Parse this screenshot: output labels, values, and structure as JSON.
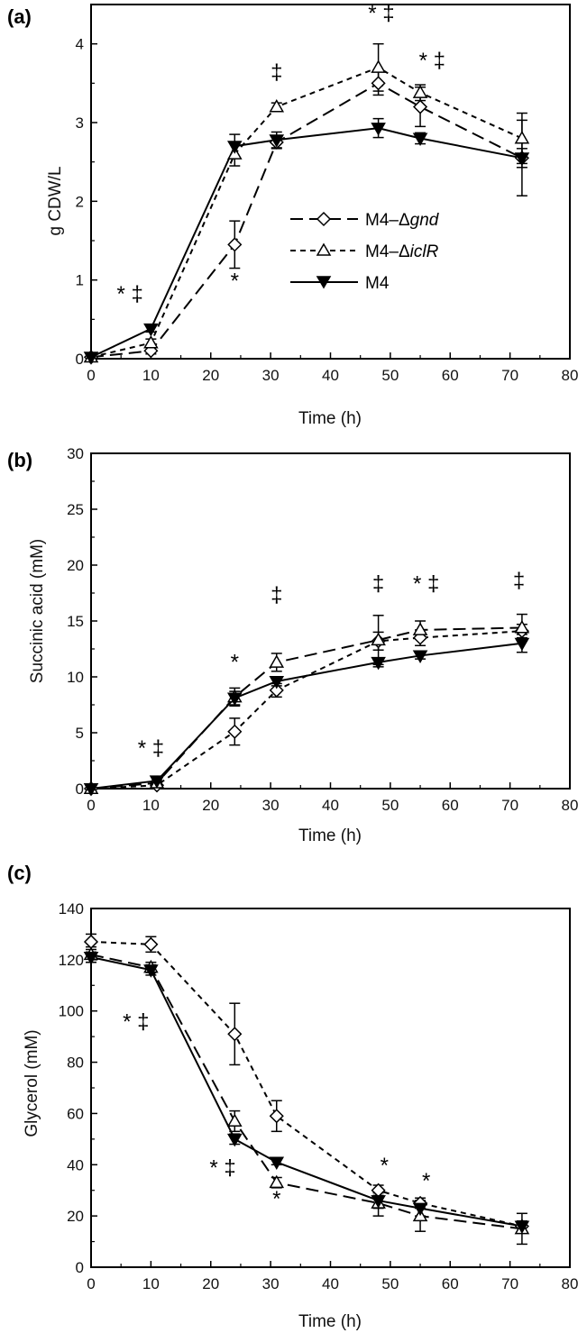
{
  "chart_data": [
    {
      "type": "line",
      "panel_label": "(a)",
      "xlabel": "Time (h)",
      "ylabel": "g CDW/L",
      "xlim": [
        0,
        80
      ],
      "ylim": [
        0,
        4.5
      ],
      "x_ticks": [
        "0",
        "10",
        "20",
        "30",
        "40",
        "50",
        "60",
        "70",
        "80"
      ],
      "y_ticks": [
        "0",
        "1",
        "2",
        "3",
        "4"
      ],
      "series": [
        {
          "key": "gnd",
          "name": "M4–Δgnd",
          "name_main": "M4–Δ",
          "name_italic": "gnd",
          "marker": "diamond-open",
          "dash": "long-dash",
          "x": [
            0,
            10,
            24,
            31,
            48,
            55,
            72
          ],
          "y": [
            0.02,
            0.1,
            1.45,
            2.75,
            3.5,
            3.2,
            2.55
          ],
          "err": [
            0.02,
            0.04,
            0.3,
            0.08,
            0.15,
            0.25,
            0.12
          ]
        },
        {
          "key": "iclR",
          "name": "M4–ΔiclR",
          "name_main": "M4–Δ",
          "name_italic": "iclR",
          "marker": "triangle-up-open",
          "dash": "short-dash",
          "x": [
            0,
            10,
            24,
            31,
            48,
            55,
            72
          ],
          "y": [
            0.02,
            0.2,
            2.6,
            3.2,
            3.7,
            3.38,
            2.8
          ],
          "err": [
            0.02,
            0.05,
            0.15,
            0.05,
            0.3,
            0.1,
            0.32
          ]
        },
        {
          "key": "m4",
          "name": "M4",
          "marker": "triangle-down-filled",
          "dash": "solid",
          "x": [
            0,
            10,
            24,
            31,
            48,
            55,
            72
          ],
          "y": [
            0.02,
            0.38,
            2.7,
            2.78,
            2.93,
            2.8,
            2.55
          ],
          "err": [
            0.02,
            0.04,
            0.15,
            0.1,
            0.12,
            0.07,
            0.48
          ]
        }
      ],
      "annotations": [
        {
          "x": 6.5,
          "y": 0.73,
          "text": "* ‡"
        },
        {
          "x": 24,
          "y": 0.9,
          "text": "*"
        },
        {
          "x": 31,
          "y": 3.55,
          "text": "‡"
        },
        {
          "x": 48.5,
          "y": 4.3,
          "text": "* ‡"
        },
        {
          "x": 57,
          "y": 3.7,
          "text": "* ‡"
        }
      ],
      "legend": {
        "placement": "center-right"
      }
    },
    {
      "type": "line",
      "panel_label": "(b)",
      "xlabel": "Time (h)",
      "ylabel": "Succinic acid (mM)",
      "xlim": [
        0,
        80
      ],
      "ylim": [
        0,
        30
      ],
      "x_ticks": [
        "0",
        "10",
        "20",
        "30",
        "40",
        "50",
        "60",
        "70",
        "80"
      ],
      "y_ticks": [
        "0",
        "5",
        "10",
        "15",
        "20",
        "25",
        "30"
      ],
      "series": [
        {
          "key": "gnd",
          "name": "M4–Δgnd",
          "marker": "diamond-open",
          "dash": "short-dash",
          "x": [
            0,
            11,
            24,
            31,
            48,
            55,
            72
          ],
          "y": [
            0,
            0.3,
            5.1,
            8.8,
            13.2,
            13.5,
            14.1
          ],
          "err": [
            0.1,
            0.2,
            1.2,
            0.6,
            0.8,
            0.7,
            0.6
          ]
        },
        {
          "key": "iclR",
          "name": "M4–ΔiclR",
          "marker": "triangle-up-open",
          "dash": "long-dash",
          "x": [
            0,
            11,
            24,
            31,
            48,
            55,
            72
          ],
          "y": [
            0,
            0.5,
            8.2,
            11.3,
            13.3,
            14.2,
            14.4
          ],
          "err": [
            0.1,
            0.2,
            0.8,
            0.8,
            2.2,
            0.8,
            1.2
          ]
        },
        {
          "key": "m4",
          "name": "M4",
          "marker": "triangle-down-filled",
          "dash": "solid",
          "x": [
            0,
            11,
            24,
            31,
            48,
            55,
            72
          ],
          "y": [
            0,
            0.7,
            8.1,
            9.6,
            11.3,
            11.9,
            13.0
          ],
          "err": [
            0.1,
            0.2,
            0.6,
            0.4,
            0.4,
            0.3,
            0.8
          ]
        }
      ],
      "annotations": [
        {
          "x": 10,
          "y": 3.0,
          "text": "* ‡"
        },
        {
          "x": 24,
          "y": 10.7,
          "text": "*"
        },
        {
          "x": 31,
          "y": 16.7,
          "text": "‡"
        },
        {
          "x": 48,
          "y": 17.7,
          "text": "‡"
        },
        {
          "x": 56,
          "y": 17.7,
          "text": "* ‡"
        },
        {
          "x": 71.5,
          "y": 18.0,
          "text": "‡"
        }
      ]
    },
    {
      "type": "line",
      "panel_label": "(c)",
      "xlabel": "Time (h)",
      "ylabel": "Glycerol (mM)",
      "xlim": [
        0,
        80
      ],
      "ylim": [
        0,
        140
      ],
      "x_ticks": [
        "0",
        "10",
        "20",
        "30",
        "40",
        "50",
        "60",
        "70",
        "80"
      ],
      "y_ticks": [
        "0",
        "20",
        "40",
        "60",
        "80",
        "100",
        "120",
        "140"
      ],
      "series": [
        {
          "key": "gnd",
          "name": "M4–Δgnd",
          "marker": "diamond-open",
          "dash": "short-dash",
          "x": [
            0,
            10,
            24,
            31,
            48,
            55,
            72
          ],
          "y": [
            127,
            126,
            91,
            59,
            30,
            25,
            16
          ],
          "err": [
            3,
            3,
            12,
            6,
            2,
            2,
            2
          ]
        },
        {
          "key": "iclR",
          "name": "M4–ΔiclR",
          "marker": "triangle-up-open",
          "dash": "long-dash",
          "x": [
            0,
            10,
            24,
            31,
            48,
            55,
            72
          ],
          "y": [
            122,
            117,
            57,
            33,
            25,
            20,
            15
          ],
          "err": [
            3,
            2,
            4,
            2,
            5,
            6,
            6
          ]
        },
        {
          "key": "m4",
          "name": "M4",
          "marker": "triangle-down-filled",
          "dash": "solid",
          "x": [
            0,
            10,
            24,
            31,
            48,
            55,
            72
          ],
          "y": [
            121,
            116,
            50,
            41,
            26,
            23,
            16
          ],
          "err": [
            2,
            2,
            2,
            1,
            3,
            3,
            2
          ]
        }
      ],
      "annotations": [
        {
          "x": 7.5,
          "y": 93,
          "text": "* ‡"
        },
        {
          "x": 22,
          "y": 36,
          "text": "* ‡"
        },
        {
          "x": 31,
          "y": 24,
          "text": "*"
        },
        {
          "x": 49,
          "y": 37,
          "text": "*"
        },
        {
          "x": 56,
          "y": 31,
          "text": "*"
        }
      ]
    }
  ]
}
